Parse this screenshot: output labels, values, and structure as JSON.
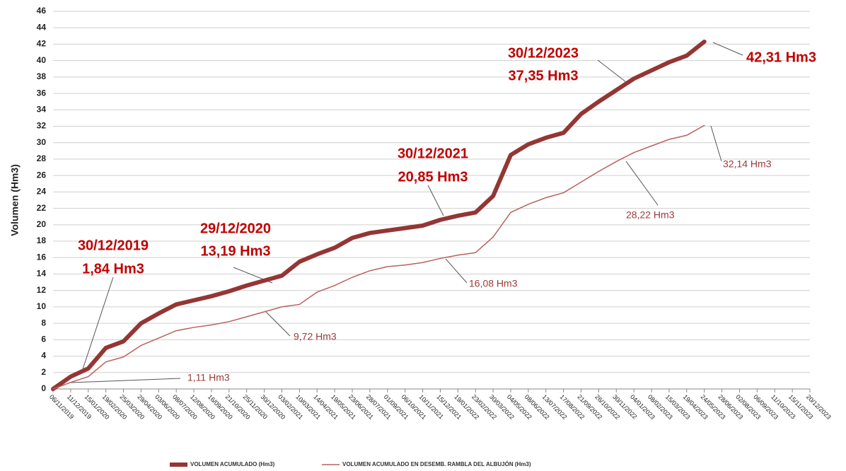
{
  "chart_data": {
    "type": "line",
    "y_label": "Volumen (Hm3)",
    "categories": [
      "06/11/2019",
      "11/12/2019",
      "15/01/2020",
      "19/02/2020",
      "25/03/2020",
      "29/04/2020",
      "03/06/2020",
      "08/07/2020",
      "12/08/2020",
      "16/09/2020",
      "21/10/2020",
      "25/11/2020",
      "30/12/2020",
      "03/02/2021",
      "10/03/2021",
      "14/04/2021",
      "19/05/2021",
      "23/06/2021",
      "28/07/2021",
      "01/09/2021",
      "06/10/2021",
      "10/11/2021",
      "15/12/2021",
      "19/01/2022",
      "23/02/2022",
      "30/03/2022",
      "04/05/2022",
      "08/06/2022",
      "13/07/2022",
      "17/08/2022",
      "21/09/2022",
      "26/10/2022",
      "30/11/2022",
      "04/01/2023",
      "08/02/2023",
      "15/03/2023",
      "19/04/2023",
      "24/05/2023",
      "28/06/2023",
      "02/08/2023",
      "06/09/2023",
      "11/10/2023",
      "15/11/2023",
      "20/12/2023"
    ],
    "series": [
      {
        "name": "VOLUMEN ACUMULADO (Hm3)",
        "color": "#943634",
        "width": 6,
        "values": [
          0,
          1.5,
          2.5,
          5.0,
          5.8,
          8.0,
          9.2,
          10.3,
          10.8,
          11.3,
          11.9,
          12.6,
          13.2,
          13.8,
          15.5,
          16.4,
          17.2,
          18.4,
          19.0,
          19.3,
          19.6,
          19.9,
          20.6,
          21.1,
          21.5,
          23.5,
          28.5,
          29.8,
          30.6,
          31.2,
          33.5,
          35.0,
          36.4,
          37.8,
          38.8,
          39.8,
          40.6,
          42.3,
          null,
          null,
          null,
          null,
          null,
          null
        ]
      },
      {
        "name": "VOLUMEN ACUMULADO EN DESEMB. RAMBLA DEL ALBUJÓN (Hm3)",
        "color": "#b9605f",
        "width": 1.5,
        "values": [
          0,
          0.8,
          1.5,
          3.3,
          3.9,
          5.3,
          6.2,
          7.1,
          7.5,
          7.8,
          8.2,
          8.8,
          9.4,
          10.0,
          10.3,
          11.8,
          12.6,
          13.6,
          14.4,
          14.9,
          15.1,
          15.4,
          15.9,
          16.3,
          16.6,
          18.5,
          21.5,
          22.5,
          23.3,
          23.9,
          25.2,
          26.5,
          27.7,
          28.8,
          29.6,
          30.4,
          30.9,
          32.1,
          null,
          null,
          null,
          null,
          null,
          null
        ]
      }
    ],
    "ylim": [
      0,
      46
    ],
    "yticks": [
      0,
      2,
      4,
      6,
      8,
      10,
      12,
      14,
      16,
      18,
      20,
      22,
      24,
      26,
      28,
      30,
      32,
      34,
      36,
      38,
      40,
      42,
      44,
      46
    ],
    "grid": true,
    "legend": "bottom",
    "annotations": [
      "30/12/2019",
      "1,84 Hm3",
      "29/12/2020",
      "13,19 Hm3",
      "30/12/2021",
      "20,85 Hm3",
      "30/12/2023",
      "37,35 Hm3",
      "42,31 Hm3",
      "1,11 Hm3",
      "9,72 Hm3",
      "16,08 Hm3",
      "28,22 Hm3",
      "32,14 Hm3"
    ]
  }
}
